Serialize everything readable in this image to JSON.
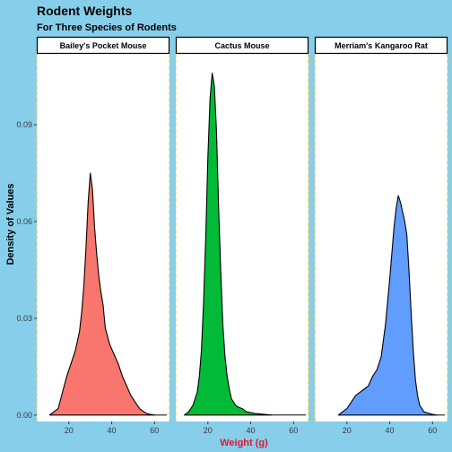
{
  "chart_data": {
    "type": "area",
    "title": "Rodent Weights",
    "subtitle": "For Three Species of Rodents",
    "xlabel": "Weight (g)",
    "ylabel": "Density of Values",
    "xlim": [
      5,
      67
    ],
    "ylim": [
      -0.002,
      0.112
    ],
    "x_ticks": [
      20,
      40,
      60
    ],
    "y_ticks": [
      0.0,
      0.03,
      0.06,
      0.09
    ],
    "y_tick_labels": [
      "0.00",
      "0.03",
      "0.06",
      "0.09"
    ],
    "grid": false,
    "legend": "none",
    "facets": [
      {
        "name": "Bailey's Pocket Mouse",
        "color": "#f8766d",
        "points": [
          [
            11,
            0
          ],
          [
            13,
            0.001
          ],
          [
            15,
            0.002
          ],
          [
            17,
            0.007
          ],
          [
            19,
            0.012
          ],
          [
            21,
            0.016
          ],
          [
            23,
            0.02
          ],
          [
            25,
            0.026
          ],
          [
            26,
            0.032
          ],
          [
            27,
            0.04
          ],
          [
            28,
            0.052
          ],
          [
            29,
            0.066
          ],
          [
            30,
            0.075
          ],
          [
            31,
            0.07
          ],
          [
            32,
            0.058
          ],
          [
            33,
            0.05
          ],
          [
            34,
            0.043
          ],
          [
            35,
            0.038
          ],
          [
            36,
            0.034
          ],
          [
            37,
            0.027
          ],
          [
            39,
            0.022
          ],
          [
            41,
            0.019
          ],
          [
            43,
            0.016
          ],
          [
            45,
            0.012
          ],
          [
            47,
            0.009
          ],
          [
            49,
            0.006
          ],
          [
            51,
            0.004
          ],
          [
            53,
            0.002
          ],
          [
            55,
            0.001
          ],
          [
            57,
            0.0003
          ],
          [
            60,
            0
          ]
        ]
      },
      {
        "name": "Cactus Mouse",
        "color": "#00ba38",
        "points": [
          [
            9,
            0
          ],
          [
            11,
            0.001
          ],
          [
            13,
            0.003
          ],
          [
            15,
            0.007
          ],
          [
            16,
            0.012
          ],
          [
            17,
            0.02
          ],
          [
            18,
            0.035
          ],
          [
            19,
            0.055
          ],
          [
            20,
            0.08
          ],
          [
            21,
            0.098
          ],
          [
            22,
            0.106
          ],
          [
            23,
            0.102
          ],
          [
            24,
            0.088
          ],
          [
            25,
            0.065
          ],
          [
            26,
            0.045
          ],
          [
            27,
            0.028
          ],
          [
            28,
            0.018
          ],
          [
            29,
            0.012
          ],
          [
            30,
            0.008
          ],
          [
            31,
            0.005
          ],
          [
            32,
            0.004
          ],
          [
            33,
            0.003
          ],
          [
            34,
            0.0025
          ],
          [
            36,
            0.002
          ],
          [
            38,
            0.001
          ],
          [
            42,
            0.0005
          ],
          [
            50,
            0
          ]
        ]
      },
      {
        "name": "Merriam's Kangaroo Rat",
        "color": "#619cff",
        "points": [
          [
            16,
            0
          ],
          [
            18,
            0.001
          ],
          [
            20,
            0.002
          ],
          [
            22,
            0.004
          ],
          [
            24,
            0.006
          ],
          [
            26,
            0.007
          ],
          [
            28,
            0.008
          ],
          [
            30,
            0.009
          ],
          [
            32,
            0.012
          ],
          [
            34,
            0.014
          ],
          [
            36,
            0.018
          ],
          [
            38,
            0.028
          ],
          [
            40,
            0.042
          ],
          [
            42,
            0.058
          ],
          [
            43,
            0.064
          ],
          [
            44,
            0.068
          ],
          [
            45,
            0.066
          ],
          [
            46,
            0.063
          ],
          [
            47,
            0.06
          ],
          [
            48,
            0.056
          ],
          [
            49,
            0.045
          ],
          [
            50,
            0.032
          ],
          [
            51,
            0.02
          ],
          [
            52,
            0.011
          ],
          [
            53,
            0.006
          ],
          [
            54,
            0.003
          ],
          [
            56,
            0.001
          ],
          [
            60,
            0.0002
          ],
          [
            62,
            0
          ]
        ]
      }
    ]
  }
}
